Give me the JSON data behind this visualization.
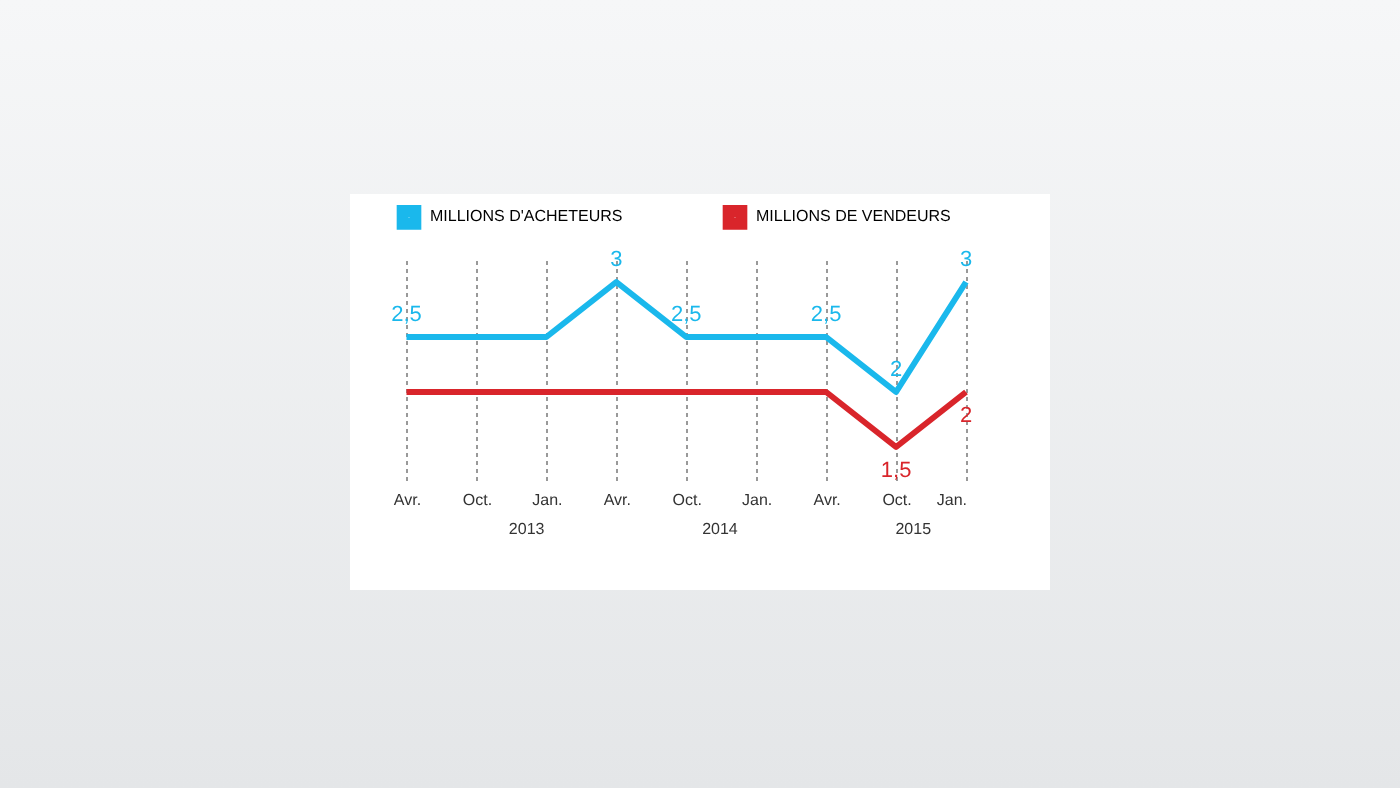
{
  "chart_data": {
    "type": "line",
    "categories": [
      "Avr.",
      "Oct.",
      "Jan.",
      "Avr.",
      "Oct.",
      "Jan.",
      "Avr.",
      "Oct.",
      "Jan."
    ],
    "series": [
      {
        "name": "MILLIONS D'ACHETEURS",
        "color": "#1ab8ec",
        "values": [
          2.5,
          2.5,
          2.5,
          3,
          2.5,
          2.5,
          2.5,
          2,
          3
        ],
        "value_labels": [
          "2,5",
          null,
          null,
          "3",
          "2,5",
          null,
          "2,5",
          "2",
          "3"
        ]
      },
      {
        "name": "MILLIONS DE VENDEURS",
        "color": "#d9252b",
        "values": [
          2,
          2,
          2,
          2,
          2,
          2,
          2,
          1.5,
          2
        ],
        "value_labels": [
          null,
          null,
          null,
          null,
          null,
          null,
          null,
          "1,5",
          "2"
        ]
      }
    ],
    "annotations": [
      "2013",
      "2014",
      "2015"
    ],
    "grid": "x",
    "legend": "top left",
    "marker": "none",
    "line_style": "solid"
  }
}
